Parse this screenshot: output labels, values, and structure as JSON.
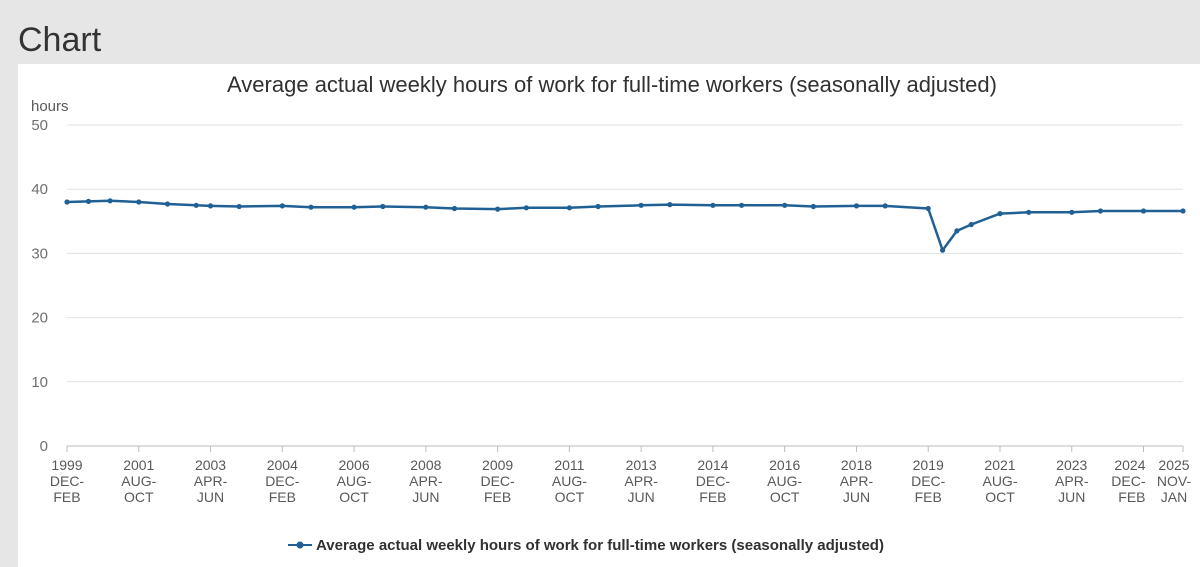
{
  "page": {
    "heading": "Chart"
  },
  "chart_data": {
    "type": "line",
    "title": "Average actual weekly hours of work for full-time workers (seasonally adjusted)",
    "ylabel": "hours",
    "xlabel": "",
    "ylim": [
      0,
      50
    ],
    "yticks": [
      0,
      10,
      20,
      30,
      40,
      50
    ],
    "x_tick_labels": [
      [
        "1999",
        "DEC-",
        "FEB"
      ],
      [
        "2001",
        "AUG-",
        "OCT"
      ],
      [
        "2003",
        "APR-",
        "JUN"
      ],
      [
        "2004",
        "DEC-",
        "FEB"
      ],
      [
        "2006",
        "AUG-",
        "OCT"
      ],
      [
        "2008",
        "APR-",
        "JUN"
      ],
      [
        "2009",
        "DEC-",
        "FEB"
      ],
      [
        "2011",
        "AUG-",
        "OCT"
      ],
      [
        "2013",
        "APR-",
        "JUN"
      ],
      [
        "2014",
        "DEC-",
        "FEB"
      ],
      [
        "2016",
        "AUG-",
        "OCT"
      ],
      [
        "2018",
        "APR-",
        "JUN"
      ],
      [
        "2019",
        "DEC-",
        "FEB"
      ],
      [
        "2021",
        "AUG-",
        "OCT"
      ],
      [
        "2023",
        "APR-",
        "JUN"
      ],
      [
        "2024",
        "DEC-",
        "FEB"
      ],
      [
        "2025",
        "NOV-",
        "JAN"
      ]
    ],
    "grid": true,
    "legend_position": "bottom",
    "series": [
      {
        "name": "Average actual weekly hours of work for full-time workers (seasonally adjusted)",
        "color": "#206095",
        "points": [
          [
            "1999 DEC-FEB",
            38.0
          ],
          [
            "2000 JUN-AUG",
            38.1
          ],
          [
            "2000 DEC-FEB",
            38.2
          ],
          [
            "2001 AUG-OCT",
            38.0
          ],
          [
            "2002 APR-JUN",
            37.7
          ],
          [
            "2002 DEC-FEB",
            37.5
          ],
          [
            "2003 APR-JUN",
            37.4
          ],
          [
            "2003 DEC-FEB",
            37.3
          ],
          [
            "2004 DEC-FEB",
            37.4
          ],
          [
            "2005 AUG-OCT",
            37.2
          ],
          [
            "2006 AUG-OCT",
            37.2
          ],
          [
            "2007 APR-JUN",
            37.3
          ],
          [
            "2008 APR-JUN",
            37.2
          ],
          [
            "2008 DEC-FEB",
            37.0
          ],
          [
            "2009 DEC-FEB",
            36.9
          ],
          [
            "2010 AUG-OCT",
            37.1
          ],
          [
            "2011 AUG-OCT",
            37.1
          ],
          [
            "2012 APR-JUN",
            37.3
          ],
          [
            "2013 APR-JUN",
            37.5
          ],
          [
            "2013 DEC-FEB",
            37.6
          ],
          [
            "2014 DEC-FEB",
            37.5
          ],
          [
            "2015 AUG-OCT",
            37.5
          ],
          [
            "2016 AUG-OCT",
            37.5
          ],
          [
            "2017 APR-JUN",
            37.3
          ],
          [
            "2018 APR-JUN",
            37.4
          ],
          [
            "2018 DEC-FEB",
            37.4
          ],
          [
            "2019 DEC-FEB",
            37.0
          ],
          [
            "2020 APR-JUN",
            30.5
          ],
          [
            "2020 AUG-OCT",
            33.5
          ],
          [
            "2020 DEC-FEB",
            34.5
          ],
          [
            "2021 AUG-OCT",
            36.2
          ],
          [
            "2022 APR-JUN",
            36.4
          ],
          [
            "2023 APR-JUN",
            36.4
          ],
          [
            "2023 DEC-FEB",
            36.6
          ],
          [
            "2024 DEC-FEB",
            36.6
          ],
          [
            "2025 NOV-JAN",
            36.6
          ]
        ]
      }
    ]
  }
}
